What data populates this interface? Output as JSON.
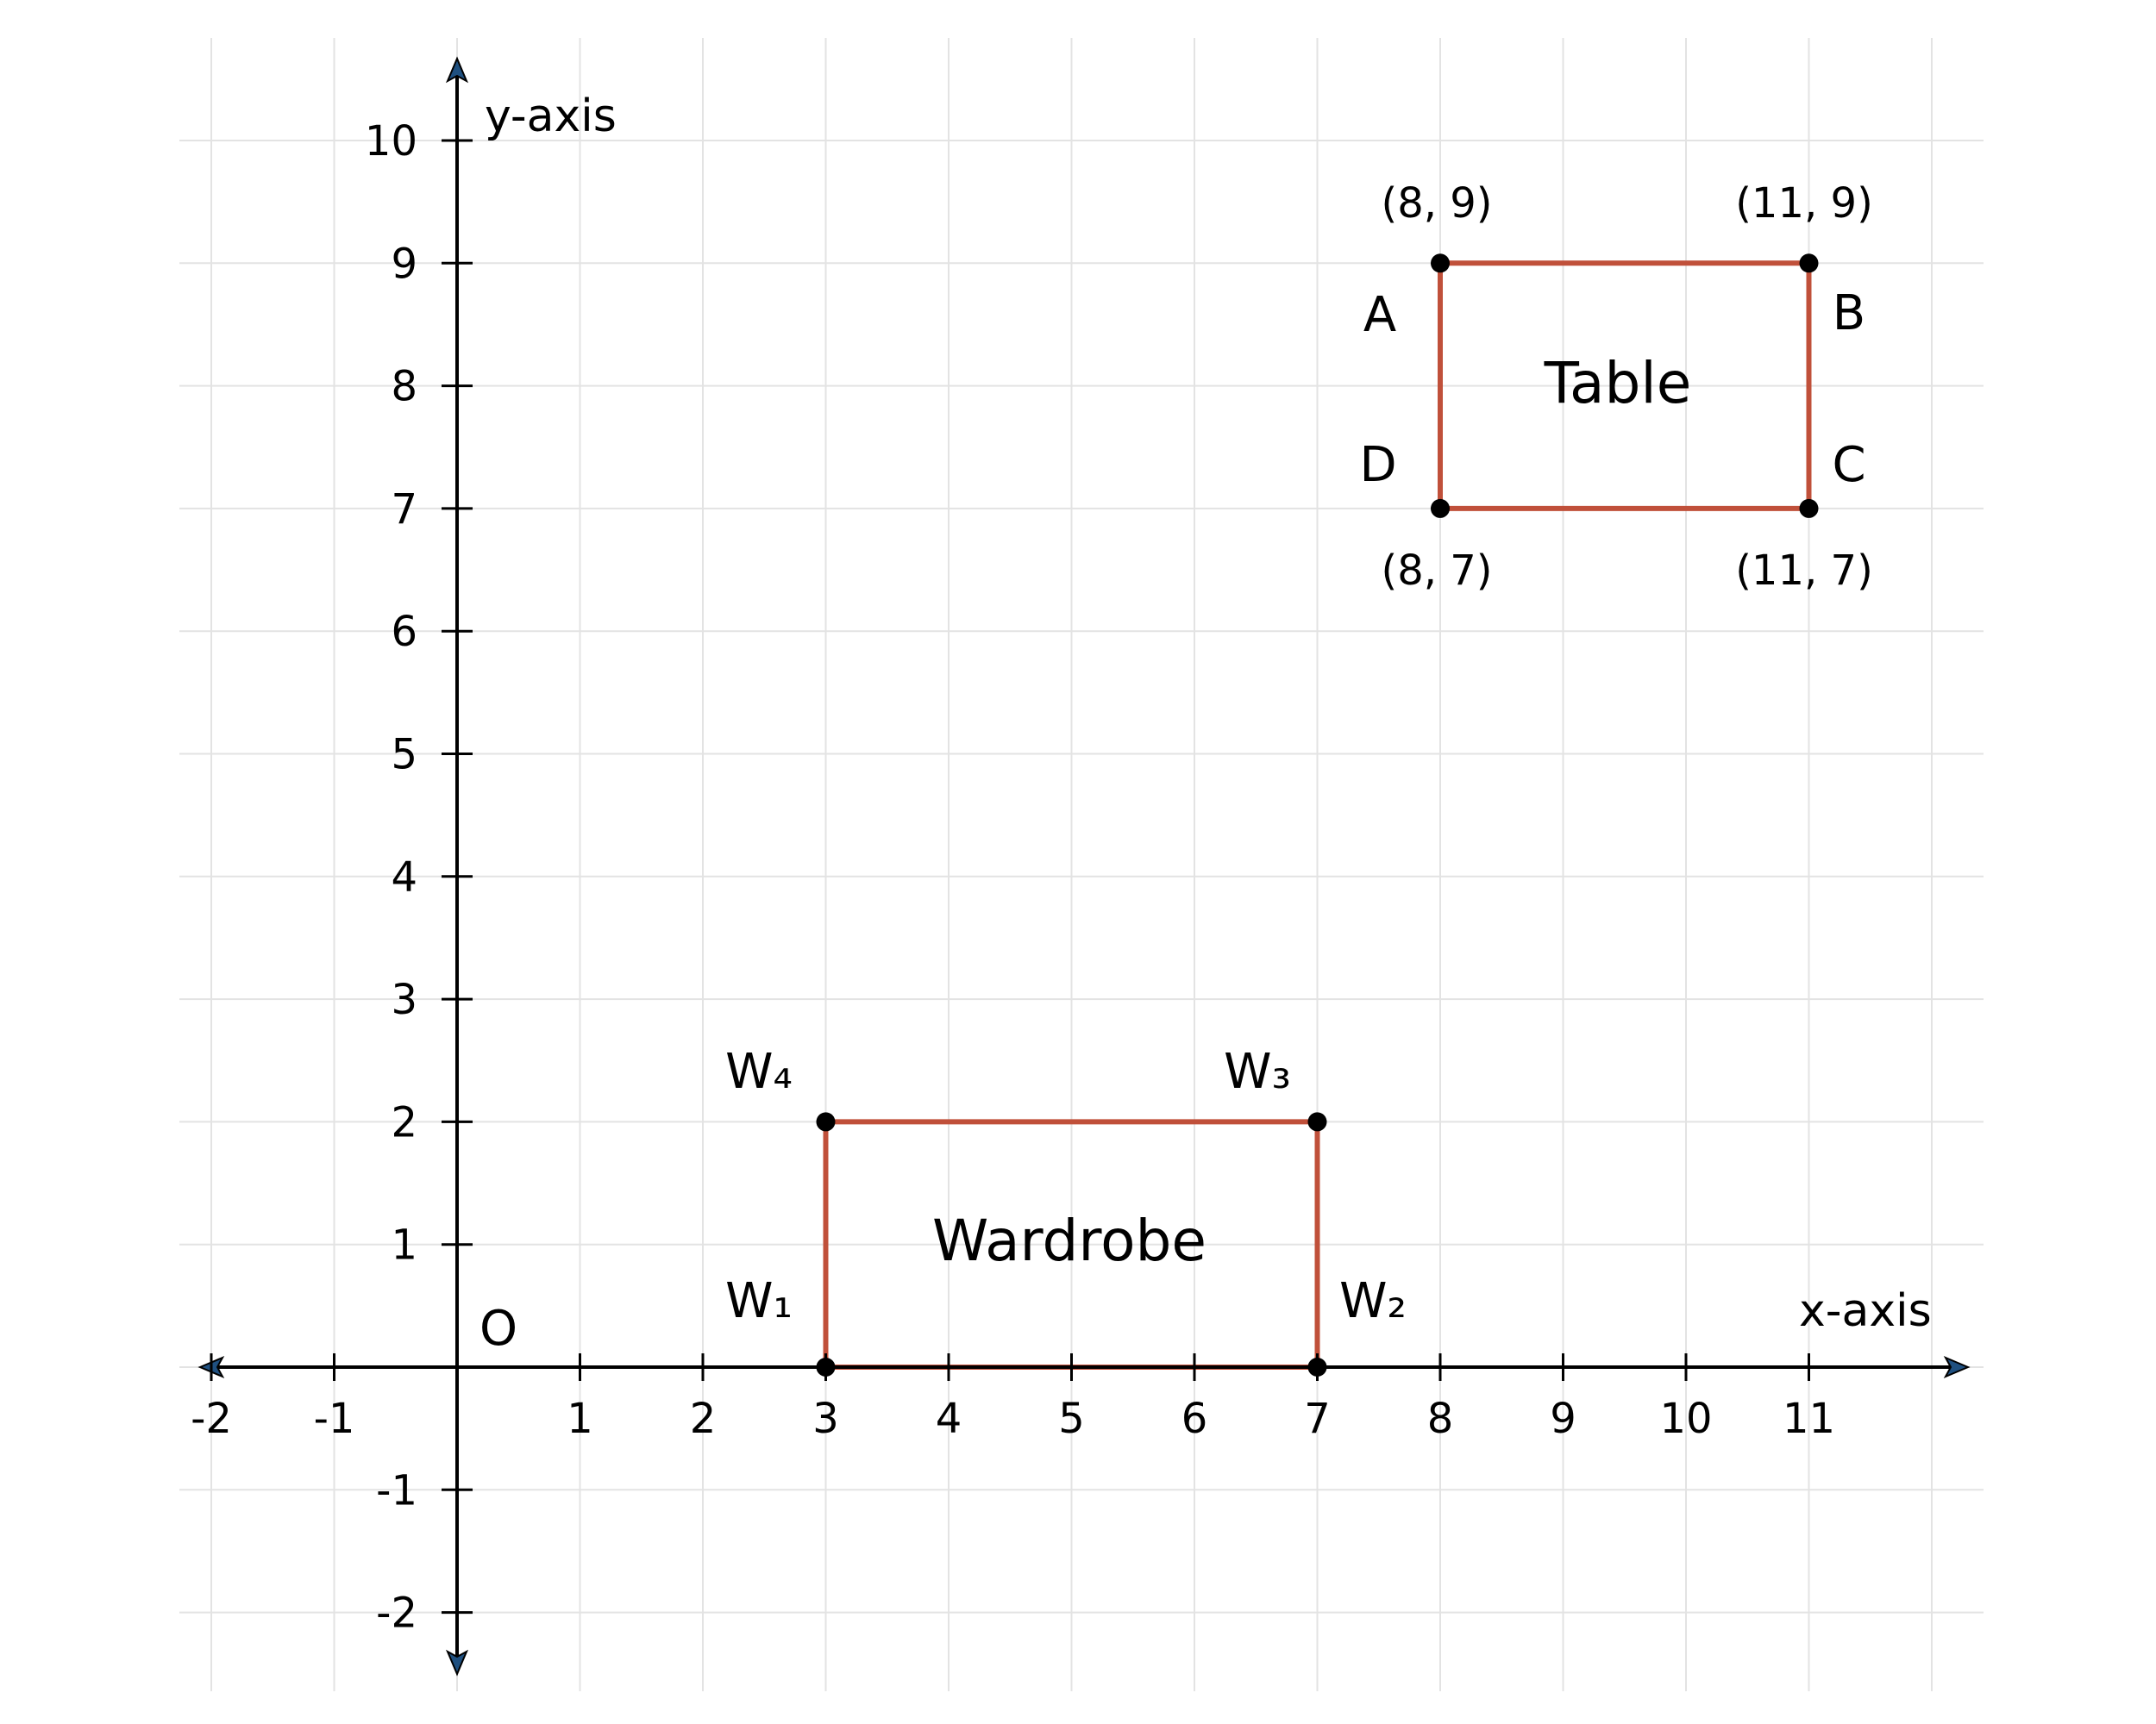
{
  "diagram": {
    "x_axis_label": "x-axis",
    "y_axis_label": "y-axis",
    "origin_label": "O",
    "x_ticks": [
      "-2",
      "-1",
      "1",
      "2",
      "3",
      "4",
      "5",
      "6",
      "7",
      "8",
      "9",
      "10",
      "11"
    ],
    "y_ticks": [
      "10",
      "9",
      "8",
      "7",
      "6",
      "5",
      "4",
      "3",
      "2",
      "1",
      "-1",
      "-2"
    ],
    "shape_color": "#c0503a",
    "grid_color": "#e3e3e3",
    "table": {
      "label": "Table",
      "points": [
        {
          "name": "A",
          "x": 8,
          "y": 9,
          "coord": "(8, 9)"
        },
        {
          "name": "B",
          "x": 11,
          "y": 9,
          "coord": "(11, 9)"
        },
        {
          "name": "C",
          "x": 11,
          "y": 7,
          "coord": "(11, 7)"
        },
        {
          "name": "D",
          "x": 8,
          "y": 7,
          "coord": "(8, 7)"
        }
      ]
    },
    "wardrobe": {
      "label": "Wardrobe",
      "points": [
        {
          "name": "W₁",
          "x": 3,
          "y": 0
        },
        {
          "name": "W₂",
          "x": 7,
          "y": 0
        },
        {
          "name": "W₃",
          "x": 7,
          "y": 2
        },
        {
          "name": "W₄",
          "x": 3,
          "y": 2
        }
      ]
    }
  }
}
